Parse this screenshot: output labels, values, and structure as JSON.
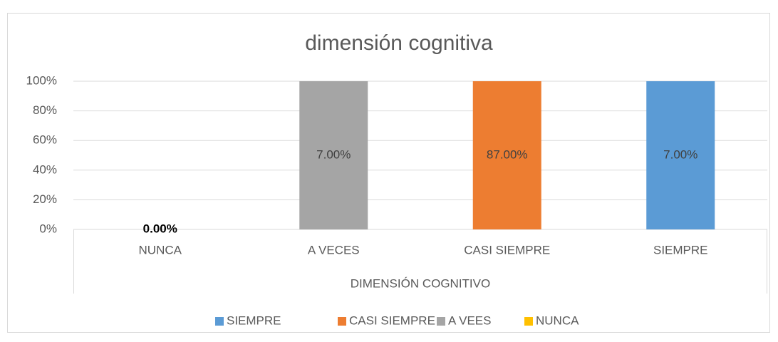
{
  "chart_data": {
    "type": "stacked_percent",
    "title": "dimensión cognitiva",
    "x_label": "DIMENSIÓN COGNITIVO",
    "categories": [
      "NUNCA",
      "A VECES",
      "CASI SIEMPRE",
      "SIEMPRE"
    ],
    "series": [
      {
        "name": "SIEMPRE",
        "color": "#5b9bd5",
        "values": [
          null,
          null,
          null,
          7
        ],
        "value_labels": [
          null,
          null,
          null,
          "7.00%"
        ]
      },
      {
        "name": "CASI SIEMPRE",
        "color": "#ed7d31",
        "values": [
          null,
          null,
          87,
          null
        ],
        "value_labels": [
          null,
          null,
          "87.00%",
          null
        ]
      },
      {
        "name": "A VEES",
        "color": "#a5a5a5",
        "values": [
          null,
          7,
          null,
          null
        ],
        "value_labels": [
          null,
          "7.00%",
          null,
          null
        ]
      },
      {
        "name": "NUNCA",
        "color": "#ffc000",
        "values": [
          0,
          null,
          null,
          null
        ],
        "value_labels": [
          "0.00%",
          null,
          null,
          null
        ]
      }
    ],
    "ylim": [
      0,
      100
    ],
    "yticks": [
      {
        "value": 0,
        "label": "0%"
      },
      {
        "value": 20,
        "label": "20%"
      },
      {
        "value": 40,
        "label": "40%"
      },
      {
        "value": 60,
        "label": "60%"
      },
      {
        "value": 80,
        "label": "80%"
      },
      {
        "value": 100,
        "label": "100%"
      }
    ],
    "grid": true,
    "legend": "bottom"
  }
}
